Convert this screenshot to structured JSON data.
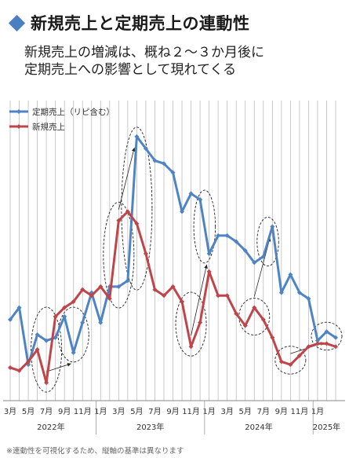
{
  "title": "新規売上と定期売上の連動性",
  "subtitle_lines": [
    "新規売上の増減は、概ね２～３か月後に",
    "定期売上への影響として現れてくる"
  ],
  "footnote": "※連動性を可視化するため、縦軸の基準は異なります",
  "colors": {
    "accent": "#4a7fc1",
    "subscription": "#4f84c4",
    "new": "#c0454a",
    "grid": "#bdbdbd",
    "background": "#ffffff"
  },
  "chart_data": {
    "type": "line",
    "series": [
      {
        "name": "定期売上（リピ含む）",
        "color": "#4f84c4",
        "values": [
          27,
          31,
          12,
          22,
          20,
          21,
          28,
          16,
          26,
          36,
          26,
          38,
          38,
          40,
          88,
          84,
          80,
          79,
          76,
          63,
          69,
          67,
          49,
          55,
          55,
          53,
          50,
          46,
          48,
          58,
          36,
          42,
          36,
          34,
          20,
          23,
          21
        ]
      },
      {
        "name": "新規売上",
        "color": "#c0454a",
        "values": [
          11,
          10,
          13,
          17,
          6,
          28,
          31,
          33,
          37,
          35,
          38,
          34,
          60,
          63,
          59,
          49,
          37,
          35,
          38,
          33,
          18,
          26,
          43,
          35,
          35,
          29,
          25,
          31,
          27,
          21,
          13,
          12,
          15,
          18,
          19,
          19,
          18
        ]
      }
    ],
    "x_tick_labels": [
      "3月",
      "5月",
      "7月",
      "9月",
      "11月",
      "1月",
      "3月",
      "5月",
      "7月",
      "9月",
      "11月",
      "1月",
      "3月",
      "5月",
      "7月",
      "9月",
      "11月",
      "1月"
    ],
    "year_labels": [
      "2022年",
      "2023年",
      "2024年",
      "2025年"
    ],
    "highlight_windows": [
      {
        "series": 1,
        "from": 3,
        "to": 5
      },
      {
        "series": 0,
        "from": 6,
        "to": 8
      },
      {
        "series": 1,
        "from": 11,
        "to": 13
      },
      {
        "series": 0,
        "from": 13,
        "to": 15
      },
      {
        "series": 1,
        "from": 19,
        "to": 21
      },
      {
        "series": 0,
        "from": 21,
        "to": 22
      },
      {
        "series": 1,
        "from": 26,
        "to": 28
      },
      {
        "series": 0,
        "from": 28,
        "to": 29
      },
      {
        "series": 1,
        "from": 30,
        "to": 32
      },
      {
        "series": 0,
        "from": 34,
        "to": 36
      }
    ],
    "arrows": [
      {
        "from_series": 1,
        "from_index": 4,
        "to_series": 0,
        "to_index": 7
      },
      {
        "from_series": 1,
        "from_index": 12,
        "to_series": 0,
        "to_index": 14
      },
      {
        "from_series": 1,
        "from_index": 20,
        "to_series": 0,
        "to_index": 22
      },
      {
        "from_series": 1,
        "from_index": 27,
        "to_series": 0,
        "to_index": 29
      },
      {
        "from_series": 1,
        "from_index": 31,
        "to_series": 0,
        "to_index": 35
      }
    ],
    "grid": "vertical",
    "legend": "top-left",
    "ylim": [
      0,
      100
    ]
  }
}
